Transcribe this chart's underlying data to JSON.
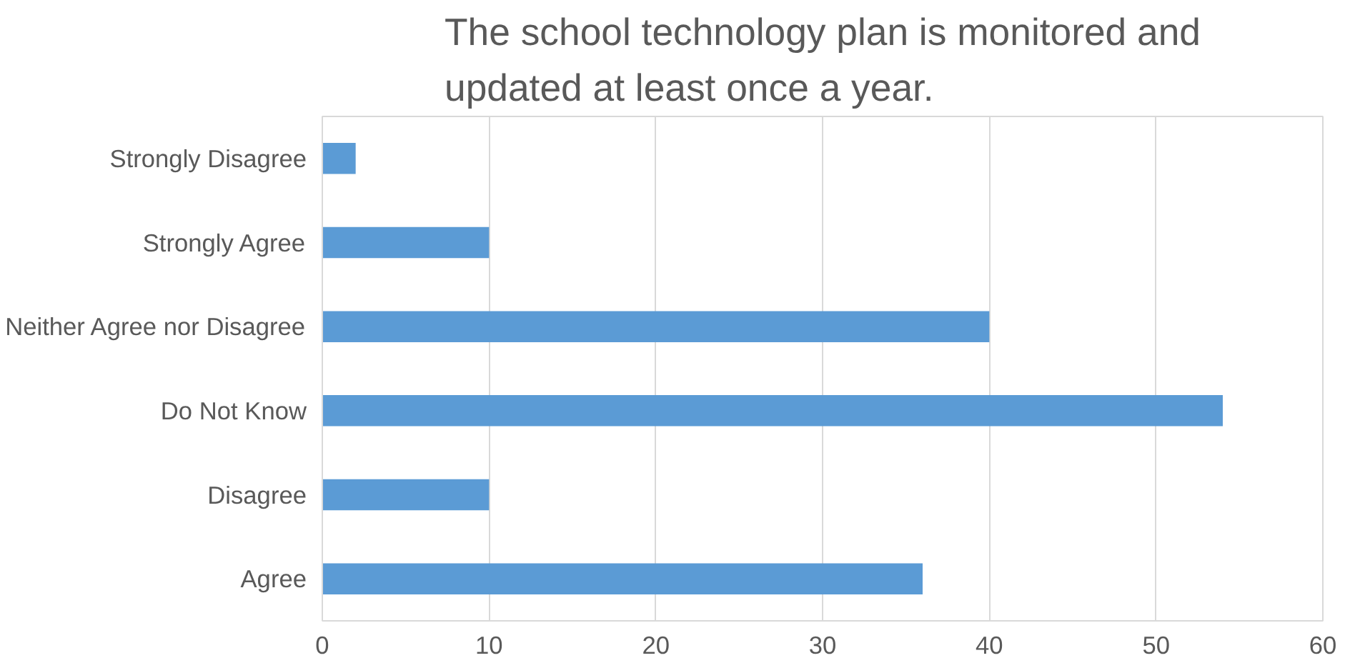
{
  "chart_data": {
    "type": "bar",
    "orientation": "horizontal",
    "title": "The school technology plan is monitored and updated at least once a year.",
    "categories": [
      "Strongly Disagree",
      "Strongly Agree",
      "Neither Agree nor Disagree",
      "Do Not Know",
      "Disagree",
      "Agree"
    ],
    "values": [
      2,
      10,
      40,
      54,
      10,
      36
    ],
    "color": "#5b9bd5",
    "xlim": [
      0,
      60
    ],
    "xticks": [
      0,
      10,
      20,
      30,
      40,
      50,
      60
    ],
    "grid": "x"
  }
}
